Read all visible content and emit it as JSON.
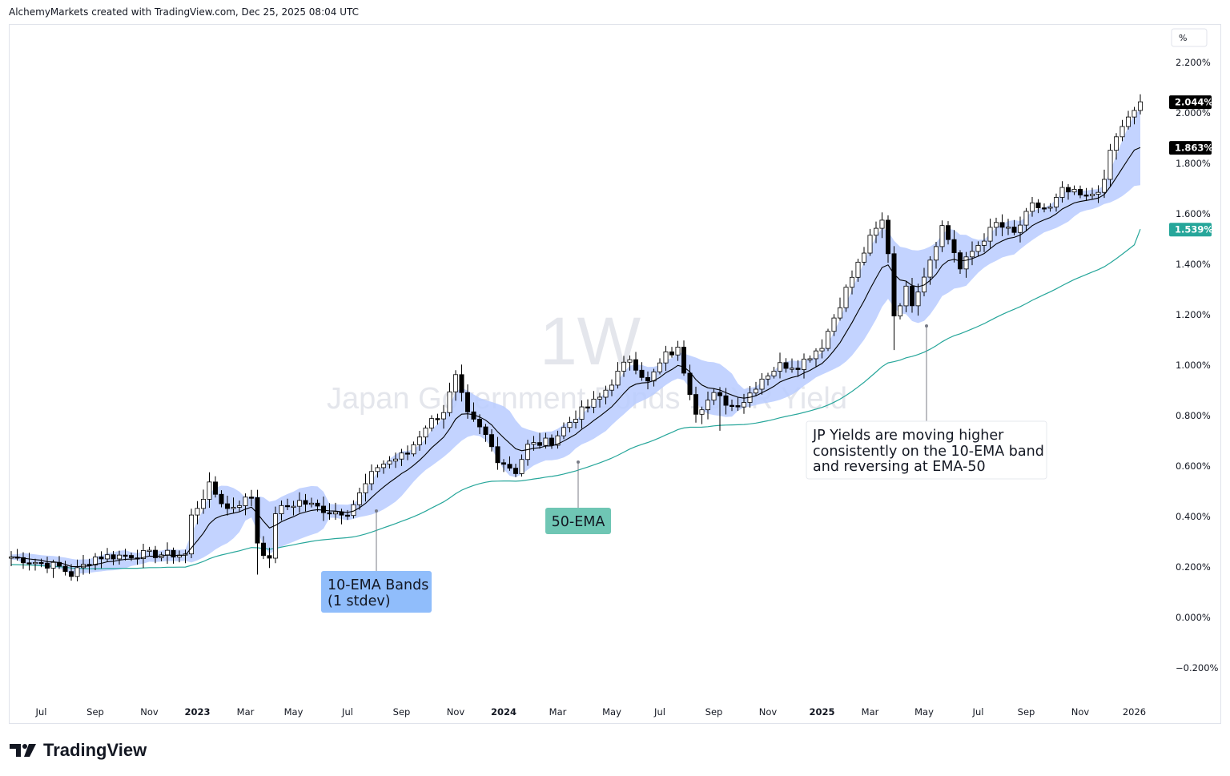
{
  "header": {
    "attribution": "AlchemyMarkets created with TradingView.com, Dec 25, 2025 08:04 UTC"
  },
  "footer": {
    "brand": "TradingView"
  },
  "colors": {
    "band_fill": "#b8cbff",
    "ema10": "#000000",
    "ema50": "#26a69a",
    "candle_up_fill": "#ffffff",
    "candle_down_fill": "#000000",
    "candle_border": "#000000",
    "last_price_bg": "#000000",
    "ema50_label_bg": "#26a69a",
    "annotation_bands_bg": "#90bdfb",
    "annotation_ema_bg": "#6fc6b4",
    "watermark": "#e4e6ec"
  },
  "chart_data": {
    "type": "candlestick",
    "symbol_watermark": "Japan Government Bonds 10 YR Yield",
    "interval_watermark": "1W",
    "ylabel": "%",
    "ylim": [
      -0.25,
      2.25
    ],
    "y_ticks": [
      "2.200%",
      "2.000%",
      "1.800%",
      "1.600%",
      "1.400%",
      "1.200%",
      "1.000%",
      "0.800%",
      "0.600%",
      "0.400%",
      "0.200%",
      "0.000%",
      "−0.200%"
    ],
    "y_tick_values": [
      2.2,
      2.0,
      1.8,
      1.6,
      1.4,
      1.2,
      1.0,
      0.8,
      0.6,
      0.4,
      0.2,
      0.0,
      -0.2
    ],
    "x_ticks": [
      {
        "label": "Jul",
        "week": 5,
        "bold": false
      },
      {
        "label": "Sep",
        "week": 14,
        "bold": false
      },
      {
        "label": "Nov",
        "week": 23,
        "bold": false
      },
      {
        "label": "2023",
        "week": 31,
        "bold": true
      },
      {
        "label": "Mar",
        "week": 39,
        "bold": false
      },
      {
        "label": "May",
        "week": 47,
        "bold": false
      },
      {
        "label": "Jul",
        "week": 56,
        "bold": false
      },
      {
        "label": "Sep",
        "week": 65,
        "bold": false
      },
      {
        "label": "Nov",
        "week": 74,
        "bold": false
      },
      {
        "label": "2024",
        "week": 82,
        "bold": true
      },
      {
        "label": "Mar",
        "week": 91,
        "bold": false
      },
      {
        "label": "May",
        "week": 100,
        "bold": false
      },
      {
        "label": "Jul",
        "week": 108,
        "bold": false
      },
      {
        "label": "Sep",
        "week": 117,
        "bold": false
      },
      {
        "label": "Nov",
        "week": 126,
        "bold": false
      },
      {
        "label": "2025",
        "week": 135,
        "bold": true
      },
      {
        "label": "Mar",
        "week": 143,
        "bold": false
      },
      {
        "label": "May",
        "week": 152,
        "bold": false
      },
      {
        "label": "Jul",
        "week": 161,
        "bold": false
      },
      {
        "label": "Sep",
        "week": 169,
        "bold": false
      },
      {
        "label": "Nov",
        "week": 178,
        "bold": false
      },
      {
        "label": "2026",
        "week": 187,
        "bold": false
      }
    ],
    "week_count": 190,
    "close_key_points": [
      [
        0,
        0.24
      ],
      [
        8,
        0.2
      ],
      [
        10,
        0.17
      ],
      [
        14,
        0.24
      ],
      [
        22,
        0.25
      ],
      [
        29,
        0.25
      ],
      [
        30,
        0.4
      ],
      [
        33,
        0.52
      ],
      [
        36,
        0.43
      ],
      [
        40,
        0.48
      ],
      [
        41,
        0.3
      ],
      [
        43,
        0.22
      ],
      [
        44,
        0.42
      ],
      [
        48,
        0.46
      ],
      [
        53,
        0.42
      ],
      [
        56,
        0.42
      ],
      [
        57,
        0.45
      ],
      [
        61,
        0.6
      ],
      [
        66,
        0.65
      ],
      [
        69,
        0.76
      ],
      [
        72,
        0.82
      ],
      [
        74,
        0.95
      ],
      [
        76,
        0.8
      ],
      [
        79,
        0.72
      ],
      [
        81,
        0.63
      ],
      [
        84,
        0.58
      ],
      [
        86,
        0.68
      ],
      [
        90,
        0.7
      ],
      [
        94,
        0.8
      ],
      [
        98,
        0.87
      ],
      [
        103,
        1.03
      ],
      [
        106,
        0.93
      ],
      [
        109,
        1.04
      ],
      [
        111,
        1.06
      ],
      [
        113,
        0.9
      ],
      [
        114,
        0.82
      ],
      [
        117,
        0.88
      ],
      [
        120,
        0.84
      ],
      [
        122,
        0.86
      ],
      [
        125,
        0.95
      ],
      [
        128,
        1.0
      ],
      [
        131,
        1.0
      ],
      [
        135,
        1.08
      ],
      [
        139,
        1.3
      ],
      [
        143,
        1.5
      ],
      [
        145,
        1.57
      ],
      [
        146,
        1.45
      ],
      [
        147,
        1.2
      ],
      [
        149,
        1.3
      ],
      [
        150,
        1.25
      ],
      [
        152,
        1.36
      ],
      [
        155,
        1.55
      ],
      [
        157,
        1.45
      ],
      [
        158,
        1.38
      ],
      [
        160,
        1.45
      ],
      [
        164,
        1.56
      ],
      [
        167,
        1.52
      ],
      [
        170,
        1.63
      ],
      [
        173,
        1.62
      ],
      [
        175,
        1.69
      ],
      [
        177,
        1.68
      ],
      [
        179,
        1.66
      ],
      [
        182,
        1.72
      ],
      [
        183,
        1.85
      ],
      [
        185,
        1.95
      ],
      [
        187,
        2.0
      ],
      [
        188,
        2.044
      ]
    ],
    "candle_wick_spikes": [
      {
        "week": 41,
        "low": 0.17
      },
      {
        "week": 147,
        "low": 1.06
      },
      {
        "week": 118,
        "low": 0.74
      },
      {
        "week": 74,
        "high": 0.98
      }
    ],
    "series": [
      {
        "name": "EMA-10",
        "last_value": "1.863%",
        "last": 1.863
      },
      {
        "name": "EMA-50",
        "last_value": "1.539%",
        "last": 1.539
      },
      {
        "name": "10-EMA Bands (1 stdev)"
      }
    ],
    "last_price_label": "2.044%",
    "annotations": [
      {
        "text_lines": [
          "10-EMA Bands",
          "(1 stdev)"
        ],
        "anchor_week": 59,
        "anchor_value": 0.42
      },
      {
        "text_lines": [
          "50-EMA"
        ],
        "anchor_week": 92,
        "anchor_value": 0.61
      },
      {
        "text_lines": [
          "JP Yields are moving higher",
          "consistently on the 10-EMA band",
          "and reversing at EMA-50"
        ],
        "anchor_week": 148,
        "anchor_value": 1.15
      }
    ]
  }
}
